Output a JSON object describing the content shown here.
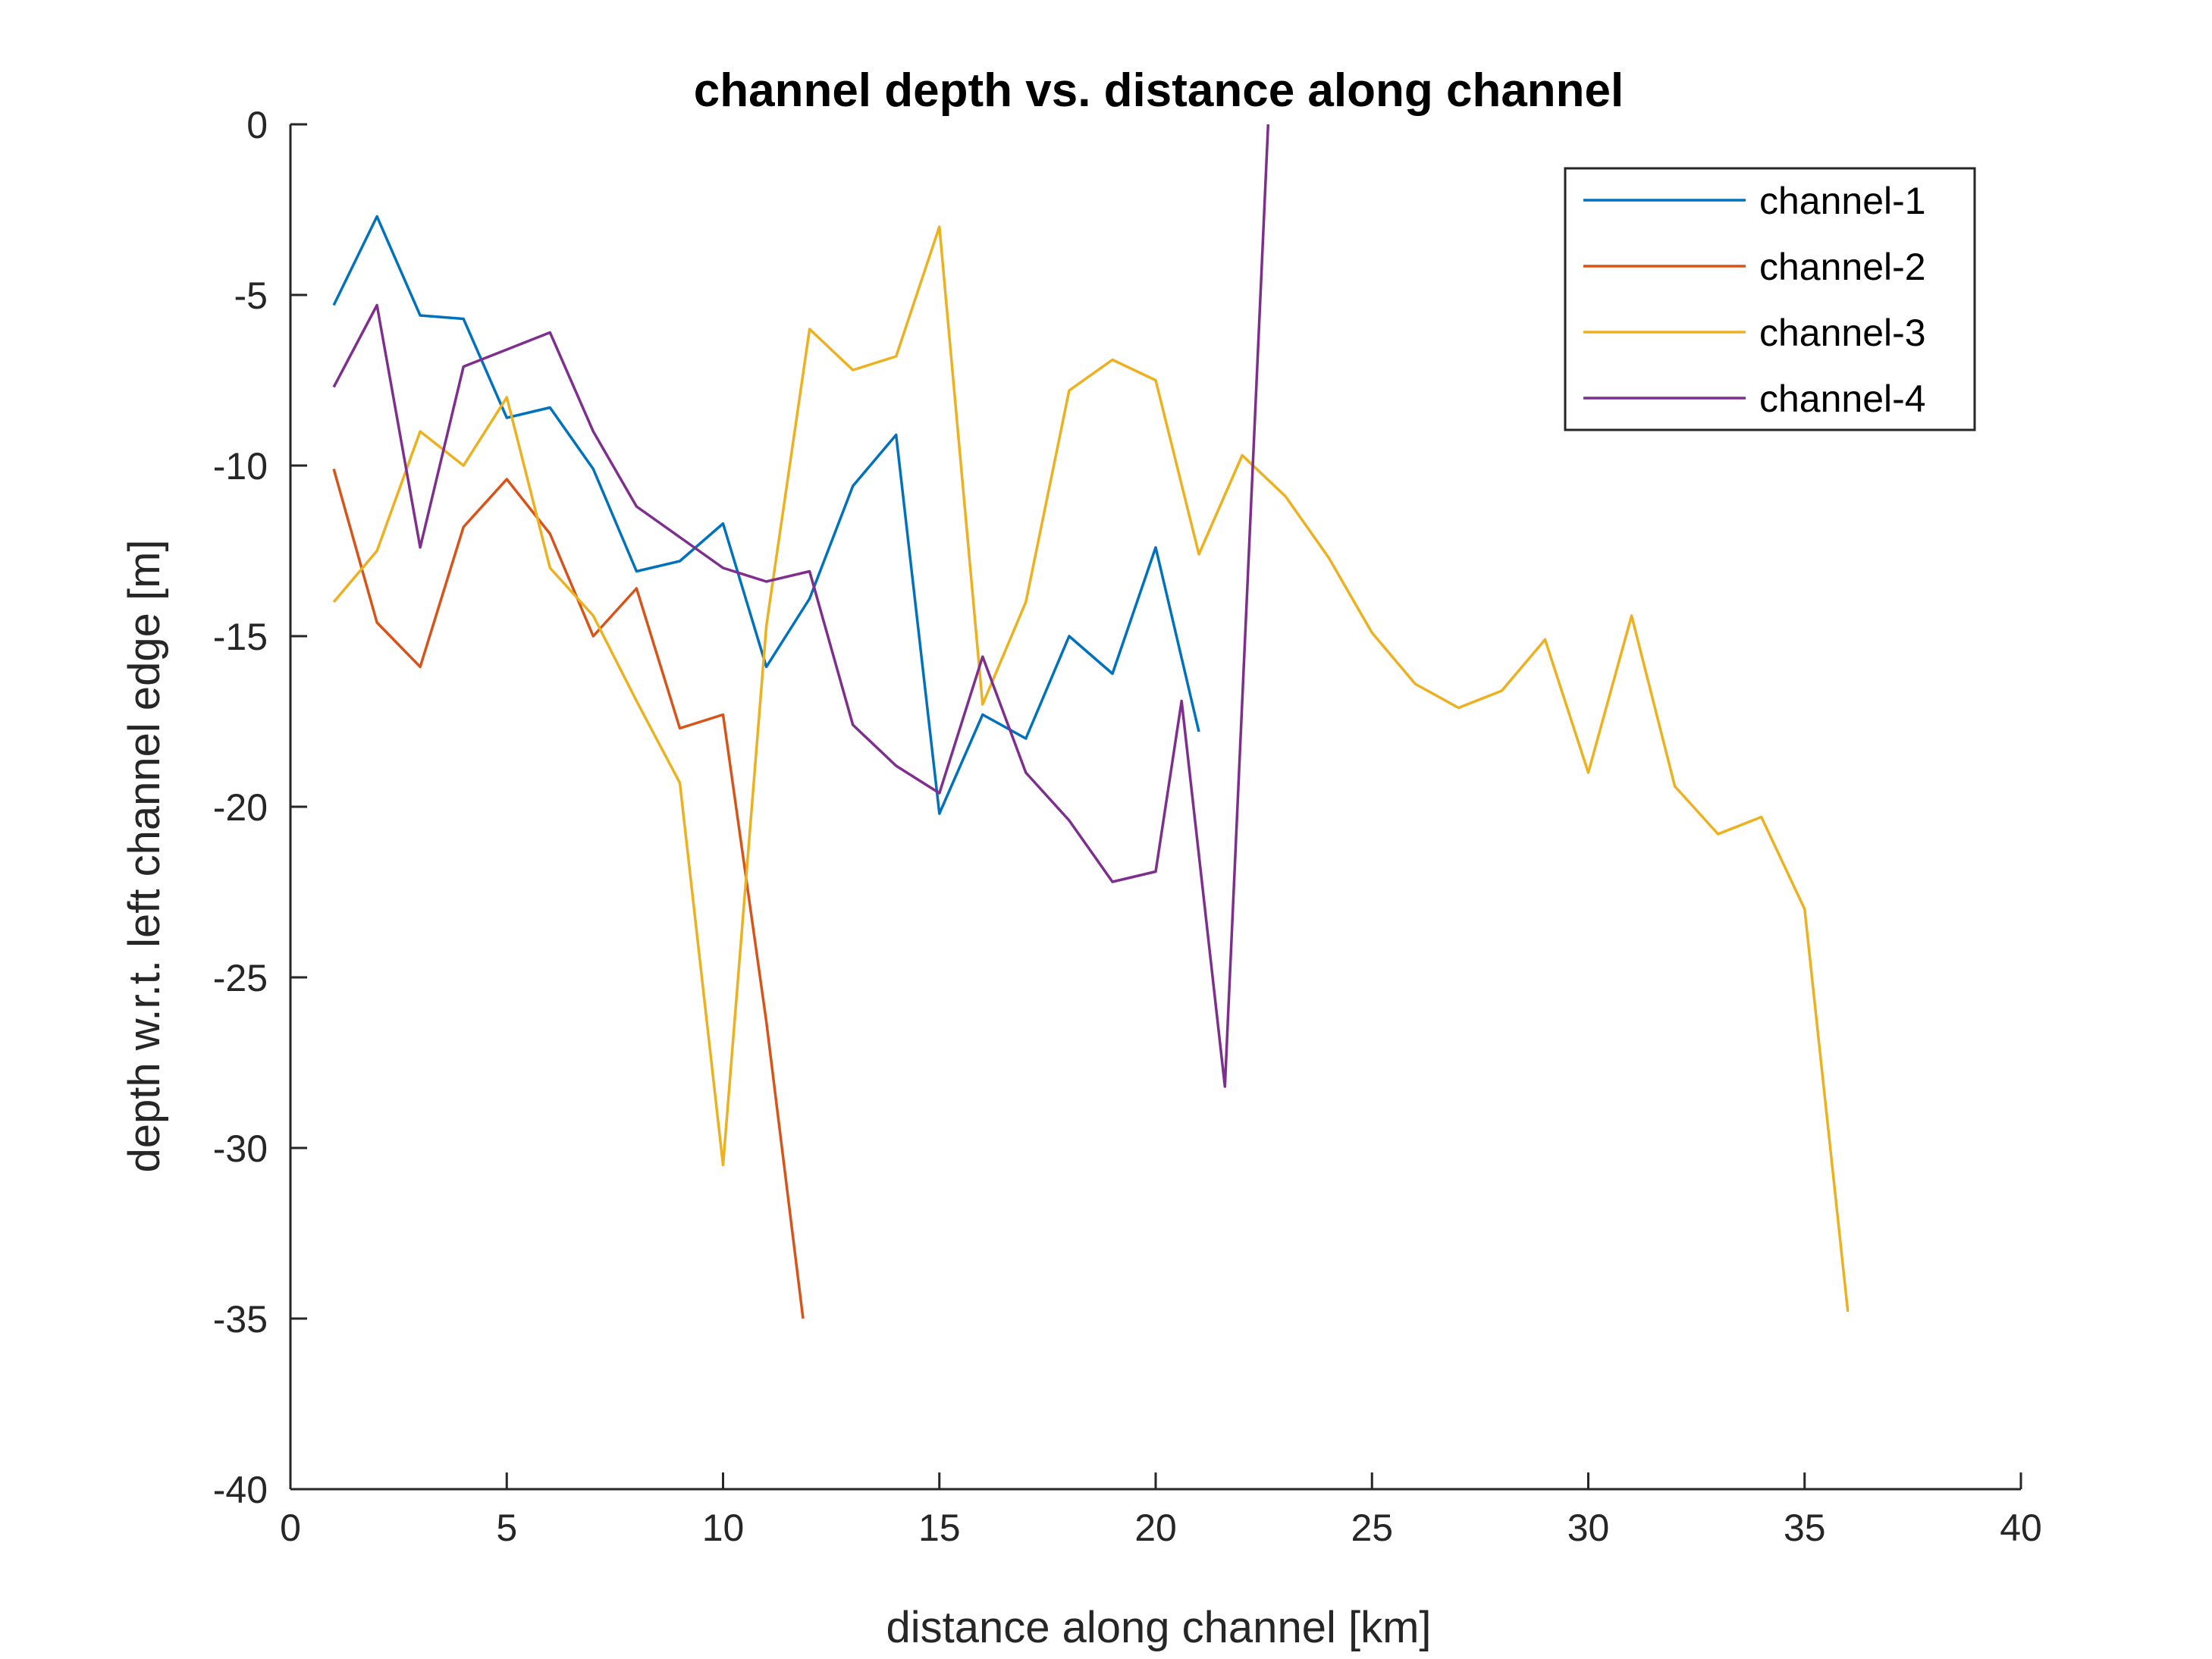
{
  "chart_data": {
    "type": "line",
    "title": "channel depth vs. distance along channel",
    "xlabel": "distance along channel [km]",
    "ylabel": "depth w.r.t. left channel edge [m]",
    "xlim": [
      0,
      40
    ],
    "ylim": [
      -40,
      0
    ],
    "xticks": [
      0,
      5,
      10,
      15,
      20,
      25,
      30,
      35,
      40
    ],
    "yticks": [
      0,
      -5,
      -10,
      -15,
      -20,
      -25,
      -30,
      -35,
      -40
    ],
    "grid": false,
    "legend_position": "top-right",
    "series": [
      {
        "name": "channel-1",
        "color": "#0072BD",
        "x": [
          1,
          2,
          3,
          4,
          5,
          6,
          7,
          8,
          9,
          10,
          11,
          12,
          13,
          14,
          15,
          16,
          17,
          18,
          19,
          20,
          21
        ],
        "y": [
          -5.3,
          -2.7,
          -5.6,
          -5.7,
          -8.6,
          -8.3,
          -10.1,
          -13.1,
          -12.8,
          -11.7,
          -15.9,
          -13.9,
          -10.6,
          -9.1,
          -20.2,
          -17.3,
          -18.0,
          -15.0,
          -16.1,
          -12.4,
          -17.8
        ]
      },
      {
        "name": "channel-2",
        "color": "#D95319",
        "x": [
          1,
          2,
          3,
          4,
          5,
          6,
          7,
          8,
          9,
          10,
          11,
          11.85
        ],
        "y": [
          -10.1,
          -14.6,
          -15.9,
          -11.8,
          -10.4,
          -12.0,
          -15.0,
          -13.6,
          -17.7,
          -17.3,
          -26.3,
          -35.0
        ]
      },
      {
        "name": "channel-3",
        "color": "#EDB120",
        "x": [
          1,
          2,
          3,
          4,
          5,
          6,
          7,
          8,
          9,
          10,
          11,
          12,
          13,
          14,
          15,
          16,
          17,
          18,
          19,
          20,
          21,
          22,
          23,
          24,
          25,
          26,
          27,
          28,
          29,
          30,
          31,
          32,
          33,
          34,
          35,
          36
        ],
        "y": [
          -14.0,
          -12.5,
          -9.0,
          -10.0,
          -8.0,
          -13.0,
          -14.4,
          -16.9,
          -19.3,
          -30.5,
          -14.7,
          -6.0,
          -7.2,
          -6.8,
          -3.0,
          -17.0,
          -14.0,
          -7.8,
          -6.9,
          -7.5,
          -12.6,
          -9.7,
          -10.9,
          -12.7,
          -14.9,
          -16.4,
          -17.1,
          -16.6,
          -15.1,
          -19.0,
          -14.4,
          -19.4,
          -20.8,
          -20.3,
          -23.0,
          -34.8
        ]
      },
      {
        "name": "channel-4",
        "color": "#7E2F8E",
        "x": [
          1,
          2,
          3,
          4,
          5,
          6,
          7,
          8,
          9,
          10,
          11,
          12,
          13,
          14,
          15,
          16,
          17,
          18,
          19,
          20,
          20.6,
          21.6,
          22.6
        ],
        "y": [
          -7.7,
          -5.3,
          -12.4,
          -7.1,
          -6.6,
          -6.1,
          -9.0,
          -11.2,
          -12.1,
          -13.0,
          -13.4,
          -13.1,
          -17.6,
          -18.8,
          -19.6,
          -15.6,
          -19.0,
          -20.4,
          -22.2,
          -21.9,
          -16.9,
          -28.2,
          0.0
        ]
      }
    ]
  }
}
